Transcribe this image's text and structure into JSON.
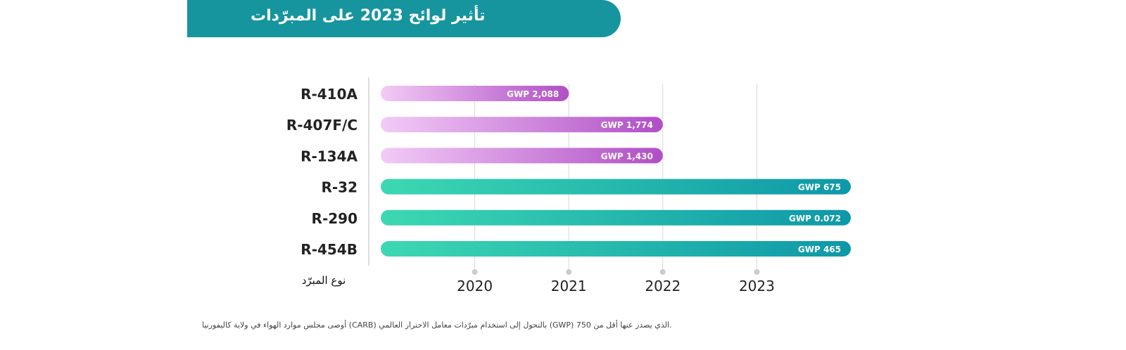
{
  "title": "تأثير لوائح 2023 على المبرّدات",
  "footnote": "أوصى مجلس موارد الهواء في ولاية كاليفورنيا (CARB) بالتحول إلى استخدام مبرّدات معامل الاحترار العالمي (GWP) الذي يصدر عنها أقل من 750.",
  "colors": {
    "banner": "#16959f",
    "purple_start": "#f2cbf6",
    "purple_end": "#b04ec6",
    "teal_start": "#3dd8b2",
    "teal_end": "#0e98a8"
  },
  "chart_data": {
    "type": "bar",
    "orientation": "horizontal",
    "ylabel": "نوع المبرّد",
    "categories": [
      "R-410A",
      "R-407F/C",
      "R-134A",
      "R-32",
      "R-290",
      "R-454B"
    ],
    "end_year": [
      2021,
      2022,
      2022,
      2024,
      2024,
      2024
    ],
    "data_labels": [
      "GWP 2,088",
      "GWP 1,774",
      "GWP 1,430",
      "GWP 675",
      "GWP 0.072",
      "GWP 465"
    ],
    "series_color": [
      "purple",
      "purple",
      "purple",
      "teal",
      "teal",
      "teal"
    ],
    "x_ticks": [
      2020,
      2021,
      2022,
      2023
    ],
    "xlim": [
      2019,
      2024
    ],
    "grid": true
  }
}
